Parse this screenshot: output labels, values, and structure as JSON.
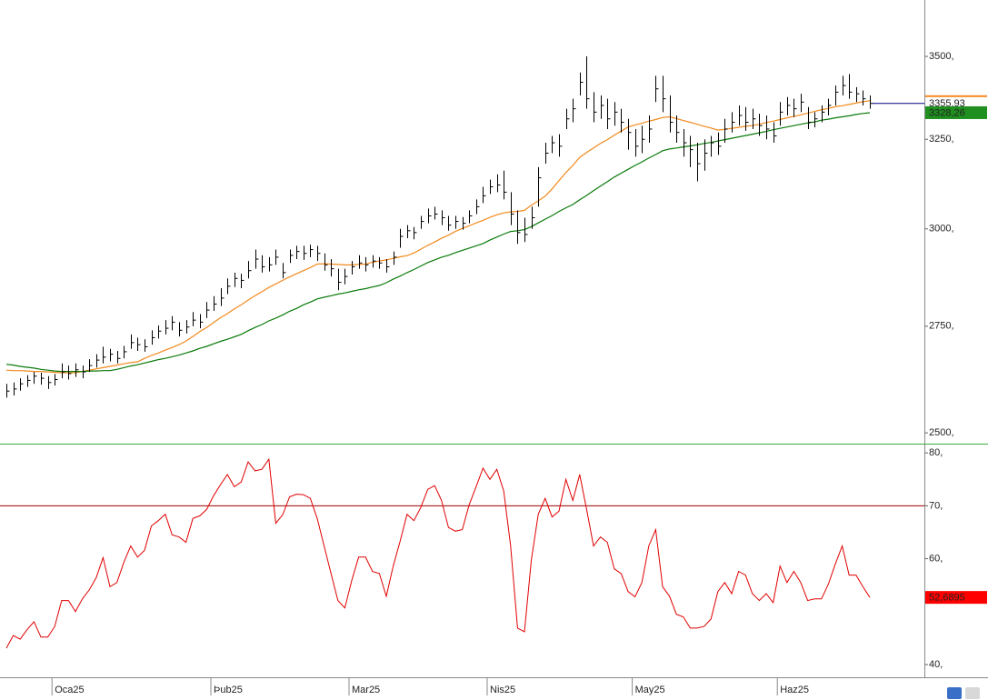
{
  "chart_data": [
    {
      "type": "ohlc",
      "log_scale": true,
      "ylim": [
        2476,
        3681
      ],
      "yticks": [
        {
          "value": 2500,
          "label": "2500,"
        },
        {
          "value": 2750,
          "label": "2750,"
        },
        {
          "value": 3000,
          "label": "3000,"
        },
        {
          "value": 3250,
          "label": "3250,"
        },
        {
          "value": 3500,
          "label": "3500,"
        }
      ],
      "categories": [
        null,
        null,
        null,
        null,
        null,
        null,
        null,
        "Oca25",
        null,
        null,
        null,
        null,
        null,
        null,
        null,
        null,
        null,
        null,
        null,
        null,
        null,
        null,
        null,
        null,
        null,
        null,
        null,
        null,
        null,
        null,
        "Þub25",
        null,
        null,
        null,
        null,
        null,
        null,
        null,
        null,
        null,
        null,
        null,
        null,
        null,
        null,
        null,
        null,
        null,
        null,
        null,
        "Mar25",
        null,
        null,
        null,
        null,
        null,
        null,
        null,
        null,
        null,
        null,
        null,
        null,
        null,
        null,
        null,
        null,
        null,
        null,
        null,
        "Nis25",
        null,
        null,
        null,
        null,
        null,
        null,
        null,
        null,
        null,
        null,
        null,
        null,
        null,
        null,
        null,
        null,
        null,
        null,
        null,
        null,
        "May25",
        null,
        null,
        null,
        null,
        null,
        null,
        null,
        null,
        null,
        null,
        null,
        null,
        null,
        null,
        null,
        null,
        null,
        null,
        null,
        null,
        "Haz25",
        null,
        null,
        null,
        null,
        null,
        null,
        null,
        null,
        null,
        null,
        null,
        null,
        null
      ],
      "color": "#000000",
      "close": [
        2595,
        2600,
        2612,
        2620,
        2630,
        2625,
        2615,
        2622,
        2640,
        2636,
        2645,
        2640,
        2655,
        2668,
        2675,
        2682,
        2672,
        2688,
        2710,
        2705,
        2700,
        2722,
        2738,
        2745,
        2760,
        2740,
        2748,
        2765,
        2760,
        2790,
        2805,
        2820,
        2850,
        2870,
        2865,
        2890,
        2920,
        2900,
        2905,
        2925,
        2885,
        2930,
        2940,
        2935,
        2945,
        2935,
        2905,
        2895,
        2860,
        2875,
        2900,
        2910,
        2905,
        2915,
        2910,
        2900,
        2925,
        2980,
        2995,
        2990,
        3020,
        3035,
        3040,
        3030,
        3010,
        3020,
        3015,
        3035,
        3060,
        3090,
        3115,
        3120,
        3100,
        3040,
        2990,
        2985,
        3030,
        3140,
        3210,
        3240,
        3230,
        3310,
        3340,
        3420,
        3370,
        3330,
        3350,
        3310,
        3330,
        3300,
        3270,
        3230,
        3250,
        3280,
        3400,
        3370,
        3300,
        3270,
        3240,
        3220,
        3180,
        3210,
        3240,
        3230,
        3280,
        3300,
        3320,
        3300,
        3310,
        3290,
        3280,
        3260,
        3330,
        3350,
        3340,
        3360,
        3300,
        3310,
        3330,
        3350,
        3390,
        3410,
        3390,
        3385,
        3370,
        3355.93
      ],
      "high": [
        2612,
        2615,
        2625,
        2632,
        2640,
        2638,
        2630,
        2635,
        2660,
        2655,
        2660,
        2655,
        2670,
        2682,
        2700,
        2695,
        2690,
        2702,
        2730,
        2722,
        2718,
        2740,
        2752,
        2765,
        2775,
        2760,
        2765,
        2785,
        2780,
        2810,
        2825,
        2845,
        2870,
        2885,
        2882,
        2915,
        2945,
        2930,
        2925,
        2945,
        2910,
        2945,
        2955,
        2955,
        2958,
        2955,
        2935,
        2920,
        2895,
        2895,
        2915,
        2930,
        2925,
        2930,
        2925,
        2920,
        2940,
        3000,
        3010,
        3005,
        3035,
        3055,
        3060,
        3050,
        3035,
        3035,
        3032,
        3050,
        3080,
        3115,
        3135,
        3150,
        3160,
        3100,
        3050,
        3030,
        3060,
        3170,
        3240,
        3260,
        3265,
        3340,
        3370,
        3450,
        3500,
        3390,
        3380,
        3370,
        3360,
        3340,
        3310,
        3280,
        3290,
        3320,
        3440,
        3440,
        3380,
        3320,
        3280,
        3260,
        3240,
        3250,
        3260,
        3270,
        3310,
        3330,
        3350,
        3345,
        3340,
        3325,
        3320,
        3300,
        3360,
        3375,
        3370,
        3385,
        3345,
        3330,
        3350,
        3370,
        3410,
        3440,
        3445,
        3405,
        3395,
        3380
      ],
      "low": [
        2580,
        2585,
        2596,
        2605,
        2612,
        2610,
        2600,
        2608,
        2625,
        2622,
        2628,
        2625,
        2640,
        2650,
        2660,
        2665,
        2660,
        2672,
        2695,
        2690,
        2688,
        2705,
        2720,
        2730,
        2740,
        2725,
        2732,
        2750,
        2745,
        2770,
        2788,
        2800,
        2830,
        2848,
        2845,
        2870,
        2895,
        2885,
        2888,
        2905,
        2870,
        2910,
        2920,
        2918,
        2925,
        2915,
        2890,
        2875,
        2840,
        2855,
        2880,
        2895,
        2888,
        2898,
        2895,
        2885,
        2905,
        2950,
        2975,
        2972,
        3000,
        3015,
        3025,
        3010,
        2995,
        3000,
        2998,
        3015,
        3040,
        3070,
        3095,
        3100,
        3080,
        3010,
        2960,
        2965,
        3000,
        3060,
        3180,
        3210,
        3200,
        3280,
        3300,
        3380,
        3340,
        3300,
        3310,
        3280,
        3290,
        3270,
        3220,
        3200,
        3210,
        3240,
        3360,
        3330,
        3270,
        3240,
        3200,
        3170,
        3130,
        3160,
        3200,
        3205,
        3240,
        3270,
        3290,
        3275,
        3280,
        3260,
        3250,
        3240,
        3290,
        3320,
        3315,
        3330,
        3280,
        3285,
        3300,
        3320,
        3350,
        3380,
        3370,
        3360,
        3350,
        3340
      ],
      "overlays": [
        {
          "color": "#f28a1e",
          "values": [
            2644,
            2643,
            2643,
            2642,
            2641,
            2641,
            2640,
            2639,
            2638,
            2638,
            2638,
            2641,
            2644,
            2647,
            2650,
            2653,
            2656,
            2659,
            2662,
            2664,
            2672,
            2679,
            2685,
            2692,
            2698,
            2705,
            2714,
            2725,
            2737,
            2747,
            2759,
            2771,
            2781,
            2793,
            2803,
            2815,
            2826,
            2836,
            2847,
            2856,
            2865,
            2874,
            2882,
            2890,
            2898,
            2907,
            2908,
            2907,
            2906,
            2905,
            2905,
            2906,
            2907,
            2912,
            2915,
            2918,
            2922,
            2926,
            2929,
            2936,
            2946,
            2956,
            2965,
            2975,
            2983,
            2993,
            3001,
            3008,
            3016,
            3023,
            3031,
            3038,
            3043,
            3046,
            3047,
            3050,
            3064,
            3076,
            3089,
            3109,
            3132,
            3155,
            3175,
            3198,
            3212,
            3225,
            3238,
            3249,
            3262,
            3274,
            3286,
            3292,
            3297,
            3303,
            3308,
            3314,
            3316,
            3311,
            3305,
            3300,
            3294,
            3288,
            3283,
            3277,
            3279,
            3282,
            3285,
            3288,
            3290,
            3294,
            3299,
            3303,
            3308,
            3313,
            3317,
            3322,
            3327,
            3332,
            3337,
            3341,
            3346,
            3349,
            3353,
            3357,
            3361,
            3364
          ]
        },
        {
          "color": "#0a7a0a",
          "values": [
            2658,
            2656,
            2653,
            2651,
            2649,
            2646,
            2644,
            2642,
            2641,
            2641,
            2641,
            2641,
            2642,
            2642,
            2643,
            2643,
            2646,
            2650,
            2654,
            2657,
            2661,
            2665,
            2669,
            2672,
            2676,
            2680,
            2685,
            2690,
            2696,
            2701,
            2707,
            2713,
            2718,
            2724,
            2730,
            2739,
            2747,
            2754,
            2763,
            2770,
            2778,
            2787,
            2794,
            2803,
            2810,
            2818,
            2822,
            2826,
            2830,
            2833,
            2837,
            2841,
            2844,
            2848,
            2852,
            2859,
            2868,
            2876,
            2885,
            2893,
            2902,
            2911,
            2918,
            2925,
            2930,
            2937,
            2943,
            2949,
            2955,
            2961,
            2970,
            2978,
            2986,
            2993,
            2995,
            2998,
            3006,
            3016,
            3026,
            3036,
            3047,
            3057,
            3066,
            3079,
            3091,
            3104,
            3117,
            3129,
            3142,
            3153,
            3164,
            3175,
            3185,
            3196,
            3206,
            3217,
            3222,
            3225,
            3228,
            3231,
            3234,
            3238,
            3241,
            3245,
            3249,
            3253,
            3257,
            3261,
            3265,
            3269,
            3273,
            3278,
            3282,
            3286,
            3290,
            3294,
            3298,
            3301,
            3306,
            3309,
            3313,
            3316,
            3319,
            3323,
            3326,
            3328.26
          ]
        }
      ],
      "last_line_color": "#000080",
      "axis_labels": [
        {
          "value": 3355.93,
          "label": "3355,93",
          "color": "#ffffff",
          "text_color": "#000000"
        },
        {
          "value": 3328.26,
          "label": "3328,26",
          "color": "#1f8f1f",
          "text_color": "#ffffff"
        }
      ]
    },
    {
      "type": "line",
      "color": "#e00000",
      "ylim": [
        37.6,
        81.4
      ],
      "yticks": [
        {
          "value": 40,
          "label": "40,"
        },
        {
          "value": 60,
          "label": "60,"
        },
        {
          "value": 70,
          "label": "70,"
        },
        {
          "value": 80,
          "label": "80,"
        }
      ],
      "hline": 70,
      "hline_color": "#a00000",
      "values": [
        43.1,
        45.5,
        44.8,
        46.6,
        48.1,
        45.2,
        45.2,
        47.2,
        52.1,
        52.1,
        50.0,
        52.4,
        54.1,
        56.4,
        60.2,
        54.7,
        55.5,
        59.3,
        62.4,
        60.3,
        61.6,
        66.2,
        67.2,
        68.4,
        64.5,
        64.1,
        63.1,
        67.6,
        68.1,
        69.3,
        71.9,
        74.0,
        75.9,
        73.6,
        74.5,
        78.3,
        76.6,
        76.9,
        78.8,
        66.7,
        68.3,
        71.7,
        72.2,
        72.1,
        71.4,
        67.6,
        62.4,
        57.2,
        52.1,
        50.7,
        55.9,
        60.3,
        60.3,
        57.6,
        57.2,
        52.9,
        58.6,
        63.3,
        68.4,
        67.2,
        69.7,
        73.1,
        73.8,
        71.0,
        65.9,
        65.2,
        65.5,
        70.2,
        73.6,
        77.1,
        75.0,
        76.9,
        72.8,
        62.4,
        46.9,
        46.2,
        59.8,
        68.4,
        71.4,
        67.9,
        69.0,
        75.0,
        71.0,
        75.9,
        69.3,
        62.4,
        64.1,
        63.1,
        58.1,
        57.2,
        53.8,
        52.8,
        55.5,
        62.4,
        65.5,
        54.7,
        52.9,
        49.5,
        49.0,
        46.9,
        46.9,
        47.2,
        48.6,
        53.8,
        55.5,
        53.4,
        57.6,
        56.9,
        53.4,
        52.1,
        53.4,
        51.7,
        58.6,
        55.5,
        57.6,
        55.5,
        52.1,
        52.4,
        52.4,
        55.2,
        59.0,
        62.4,
        56.9,
        56.9,
        54.7,
        52.6895
      ],
      "axis_labels": [
        {
          "value": 52.6895,
          "label": "52,6895",
          "color": "#ff0000",
          "text_color": "#ffffff"
        }
      ]
    }
  ]
}
